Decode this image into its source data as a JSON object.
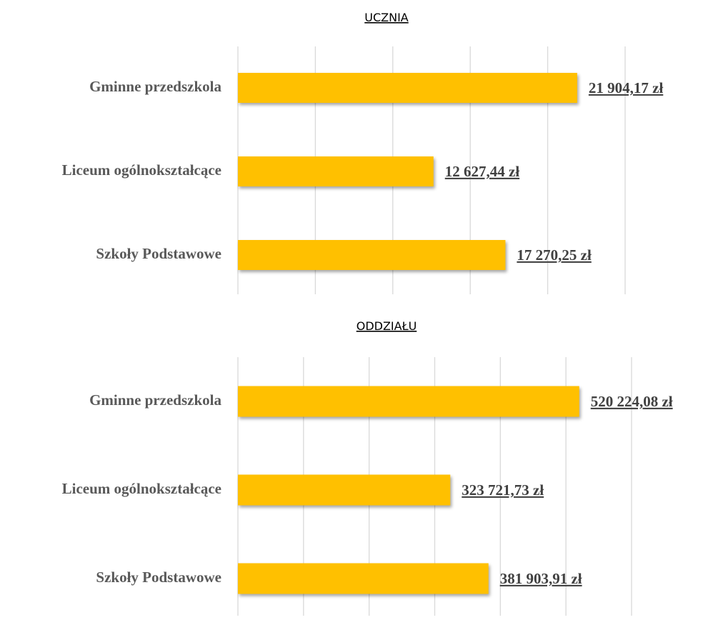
{
  "chart_data": [
    {
      "type": "bar",
      "orientation": "horizontal",
      "title": "UCZNIA",
      "categories": [
        "Gminne przedszkola",
        "Liceum ogólnokształcące",
        "Szkoły Podstawowe"
      ],
      "values": [
        21904.17,
        12627.44,
        17270.25
      ],
      "value_labels": [
        "21 904,17 zł",
        "12 627,44 zł",
        "17 270,25 zł"
      ],
      "color": "#ffc000",
      "xlim": [
        0,
        25000
      ],
      "xticks": [
        0,
        5000,
        10000,
        15000,
        20000,
        25000
      ],
      "grid": true
    },
    {
      "type": "bar",
      "orientation": "horizontal",
      "title": "ODDZIAŁU",
      "categories": [
        "Gminne przedszkola",
        "Liceum ogólnokształcące",
        "Szkoły Podstawowe"
      ],
      "values": [
        520224.08,
        323721.73,
        381903.91
      ],
      "value_labels": [
        "520 224,08 zł",
        "323 721,73 zł",
        "381 903,91 zł"
      ],
      "color": "#ffc000",
      "xlim": [
        0,
        600000
      ],
      "xticks": [
        0,
        100000,
        200000,
        300000,
        400000,
        500000,
        600000
      ],
      "grid": true
    }
  ]
}
